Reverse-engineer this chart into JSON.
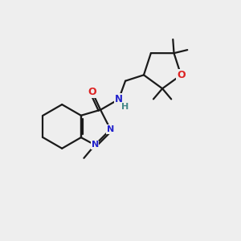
{
  "background_color": "#eeeeee",
  "bond_color": "#1a1a1a",
  "atom_colors": {
    "O": "#dd2222",
    "N": "#2222cc",
    "H": "#448888",
    "C": "#1a1a1a"
  },
  "figsize": [
    3.0,
    3.0
  ],
  "dpi": 100
}
